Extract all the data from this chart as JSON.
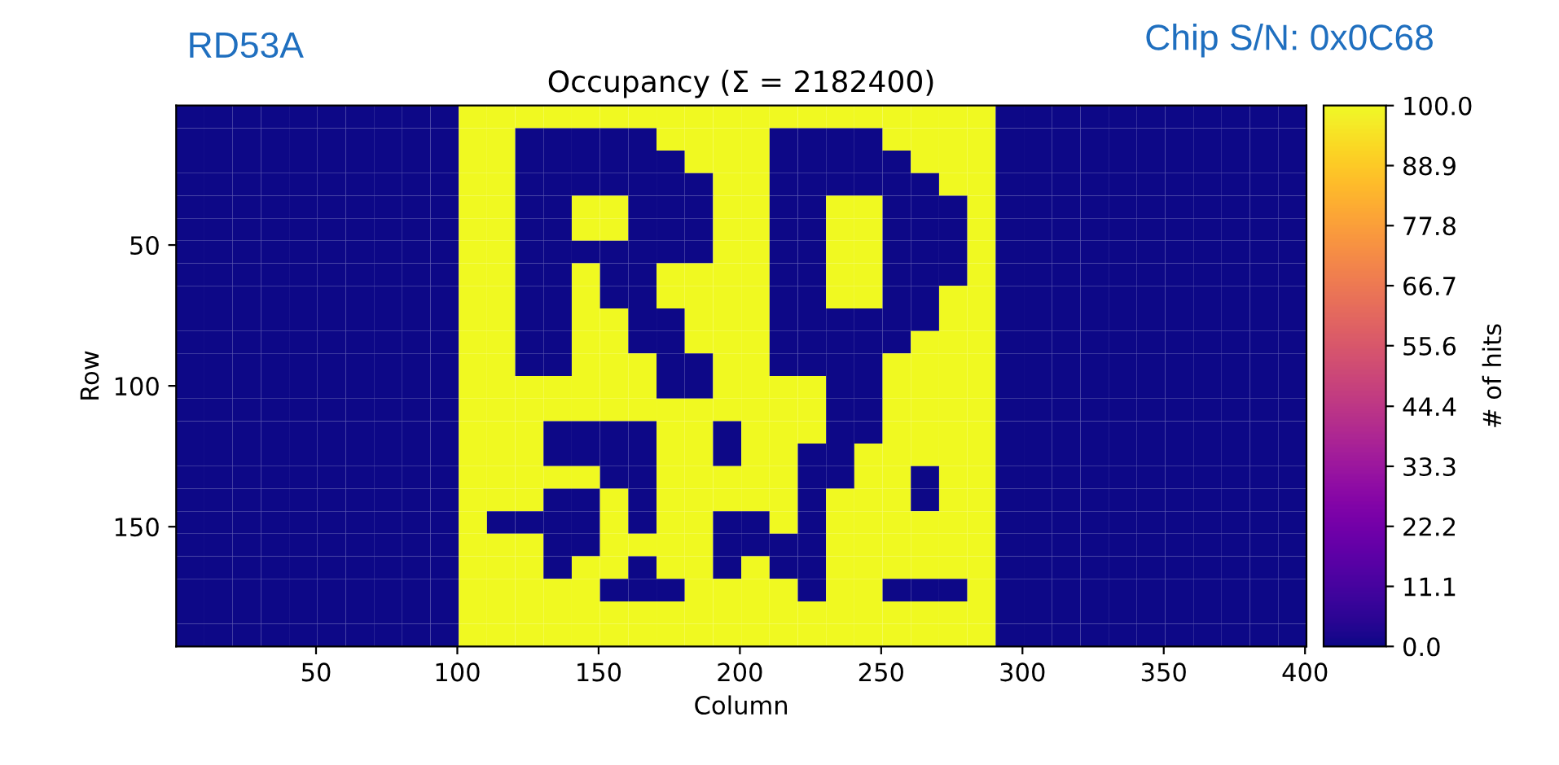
{
  "chart_data": {
    "type": "heatmap",
    "title": "Occupancy (Σ = 2182400)",
    "xlabel": "Column",
    "ylabel": "Row",
    "clabel": "# of hits",
    "annotations": [
      "RD53A",
      "Chip S/N: 0x0C68"
    ],
    "x": [
      5.5,
      15.5,
      25.5,
      35.5,
      45.5,
      55.5,
      65.5,
      75.5,
      85.5,
      95.5,
      105.5,
      115.5,
      125.5,
      135.5,
      145.5,
      155.5,
      165.5,
      175.5,
      185.5,
      195.5,
      205.5,
      215.5,
      225.5,
      235.5,
      245.5,
      255.5,
      265.5,
      275.5,
      285.5,
      295.5,
      305.5,
      315.5,
      325.5,
      335.5,
      345.5,
      355.5,
      365.5,
      375.5,
      385.5,
      395.5
    ],
    "y": [
      4.5,
      12.5,
      20.5,
      28.5,
      36.5,
      44.5,
      52.5,
      60.5,
      68.5,
      76.5,
      84.5,
      92.5,
      100.5,
      108.5,
      116.5,
      124.5,
      132.5,
      140.5,
      148.5,
      156.5,
      164.5,
      172.5,
      180.5,
      188.5
    ],
    "xlim": [
      0.5,
      400.5
    ],
    "xticks": [
      50,
      100,
      150,
      200,
      250,
      300,
      350,
      400
    ],
    "ylim": [
      192.5,
      0.5
    ],
    "yticks": [
      50,
      100,
      150
    ],
    "clim": [
      0,
      100
    ],
    "cticks": [
      {
        "value": 0,
        "label": "0.0"
      },
      {
        "value": 11.1,
        "label": "11.1"
      },
      {
        "value": 22.2,
        "label": "22.2"
      },
      {
        "value": 33.3,
        "label": "33.3"
      },
      {
        "value": 44.4,
        "label": "44.4"
      },
      {
        "value": 55.6,
        "label": "55.6"
      },
      {
        "value": 66.7,
        "label": "66.7"
      },
      {
        "value": 77.8,
        "label": "77.8"
      },
      {
        "value": 88.9,
        "label": "88.9"
      },
      {
        "value": 100,
        "label": "100.0"
      }
    ],
    "cells": [
      [
        0,
        0,
        0,
        0,
        0,
        0,
        0,
        0,
        0,
        0,
        100,
        100,
        100,
        100,
        100,
        100,
        100,
        100,
        100,
        100,
        100,
        100,
        100,
        100,
        100,
        100,
        100,
        100,
        100,
        0,
        0,
        0,
        0,
        0,
        0,
        0,
        0,
        0,
        0,
        0
      ],
      [
        0,
        0,
        0,
        0,
        0,
        0,
        0,
        0,
        0,
        0,
        100,
        100,
        0,
        0,
        0,
        0,
        0,
        100,
        100,
        100,
        100,
        0,
        0,
        0,
        0,
        100,
        100,
        100,
        100,
        0,
        0,
        0,
        0,
        0,
        0,
        0,
        0,
        0,
        0,
        0
      ],
      [
        0,
        0,
        0,
        0,
        0,
        0,
        0,
        0,
        0,
        0,
        100,
        100,
        0,
        0,
        0,
        0,
        0,
        0,
        100,
        100,
        100,
        0,
        0,
        0,
        0,
        0,
        100,
        100,
        100,
        0,
        0,
        0,
        0,
        0,
        0,
        0,
        0,
        0,
        0,
        0
      ],
      [
        0,
        0,
        0,
        0,
        0,
        0,
        0,
        0,
        0,
        0,
        100,
        100,
        0,
        0,
        0,
        0,
        0,
        0,
        0,
        100,
        100,
        0,
        0,
        0,
        0,
        0,
        0,
        100,
        100,
        0,
        0,
        0,
        0,
        0,
        0,
        0,
        0,
        0,
        0,
        0
      ],
      [
        0,
        0,
        0,
        0,
        0,
        0,
        0,
        0,
        0,
        0,
        100,
        100,
        0,
        0,
        100,
        100,
        0,
        0,
        0,
        100,
        100,
        0,
        0,
        100,
        100,
        0,
        0,
        0,
        100,
        0,
        0,
        0,
        0,
        0,
        0,
        0,
        0,
        0,
        0,
        0
      ],
      [
        0,
        0,
        0,
        0,
        0,
        0,
        0,
        0,
        0,
        0,
        100,
        100,
        0,
        0,
        100,
        100,
        0,
        0,
        0,
        100,
        100,
        0,
        0,
        100,
        100,
        0,
        0,
        0,
        100,
        0,
        0,
        0,
        0,
        0,
        0,
        0,
        0,
        0,
        0,
        0
      ],
      [
        0,
        0,
        0,
        0,
        0,
        0,
        0,
        0,
        0,
        0,
        100,
        100,
        0,
        0,
        0,
        0,
        0,
        0,
        0,
        100,
        100,
        0,
        0,
        100,
        100,
        0,
        0,
        0,
        100,
        0,
        0,
        0,
        0,
        0,
        0,
        0,
        0,
        0,
        0,
        0
      ],
      [
        0,
        0,
        0,
        0,
        0,
        0,
        0,
        0,
        0,
        0,
        100,
        100,
        0,
        0,
        100,
        0,
        0,
        100,
        100,
        100,
        100,
        0,
        0,
        100,
        100,
        0,
        0,
        0,
        100,
        0,
        0,
        0,
        0,
        0,
        0,
        0,
        0,
        0,
        0,
        0
      ],
      [
        0,
        0,
        0,
        0,
        0,
        0,
        0,
        0,
        0,
        0,
        100,
        100,
        0,
        0,
        100,
        0,
        0,
        100,
        100,
        100,
        100,
        0,
        0,
        100,
        100,
        0,
        0,
        100,
        100,
        0,
        0,
        0,
        0,
        0,
        0,
        0,
        0,
        0,
        0,
        0
      ],
      [
        0,
        0,
        0,
        0,
        0,
        0,
        0,
        0,
        0,
        0,
        100,
        100,
        0,
        0,
        100,
        100,
        0,
        0,
        100,
        100,
        100,
        0,
        0,
        0,
        0,
        0,
        0,
        100,
        100,
        0,
        0,
        0,
        0,
        0,
        0,
        0,
        0,
        0,
        0,
        0
      ],
      [
        0,
        0,
        0,
        0,
        0,
        0,
        0,
        0,
        0,
        0,
        100,
        100,
        0,
        0,
        100,
        100,
        0,
        0,
        100,
        100,
        100,
        0,
        0,
        0,
        0,
        0,
        100,
        100,
        100,
        0,
        0,
        0,
        0,
        0,
        0,
        0,
        0,
        0,
        0,
        0
      ],
      [
        0,
        0,
        0,
        0,
        0,
        0,
        0,
        0,
        0,
        0,
        100,
        100,
        0,
        0,
        100,
        100,
        100,
        0,
        0,
        100,
        100,
        0,
        0,
        0,
        0,
        100,
        100,
        100,
        100,
        0,
        0,
        0,
        0,
        0,
        0,
        0,
        0,
        0,
        0,
        0
      ],
      [
        0,
        0,
        0,
        0,
        0,
        0,
        0,
        0,
        0,
        0,
        100,
        100,
        100,
        100,
        100,
        100,
        100,
        0,
        0,
        100,
        100,
        100,
        100,
        0,
        0,
        100,
        100,
        100,
        100,
        0,
        0,
        0,
        0,
        0,
        0,
        0,
        0,
        0,
        0,
        0
      ],
      [
        0,
        0,
        0,
        0,
        0,
        0,
        0,
        0,
        0,
        0,
        100,
        100,
        100,
        100,
        100,
        100,
        100,
        100,
        100,
        100,
        100,
        100,
        100,
        0,
        0,
        100,
        100,
        100,
        100,
        0,
        0,
        0,
        0,
        0,
        0,
        0,
        0,
        0,
        0,
        0
      ],
      [
        0,
        0,
        0,
        0,
        0,
        0,
        0,
        0,
        0,
        0,
        100,
        100,
        100,
        0,
        0,
        0,
        0,
        100,
        100,
        0,
        100,
        100,
        100,
        0,
        0,
        100,
        100,
        100,
        100,
        0,
        0,
        0,
        0,
        0,
        0,
        0,
        0,
        0,
        0,
        0
      ],
      [
        0,
        0,
        0,
        0,
        0,
        0,
        0,
        0,
        0,
        0,
        100,
        100,
        100,
        0,
        0,
        0,
        0,
        100,
        100,
        0,
        100,
        100,
        0,
        0,
        100,
        100,
        100,
        100,
        100,
        0,
        0,
        0,
        0,
        0,
        0,
        0,
        0,
        0,
        0,
        0
      ],
      [
        0,
        0,
        0,
        0,
        0,
        0,
        0,
        0,
        0,
        0,
        100,
        100,
        100,
        100,
        100,
        0,
        0,
        100,
        100,
        100,
        100,
        100,
        0,
        0,
        100,
        100,
        0,
        100,
        100,
        0,
        0,
        0,
        0,
        0,
        0,
        0,
        0,
        0,
        0,
        0
      ],
      [
        0,
        0,
        0,
        0,
        0,
        0,
        0,
        0,
        0,
        0,
        100,
        100,
        100,
        0,
        0,
        100,
        0,
        100,
        100,
        100,
        100,
        100,
        0,
        100,
        100,
        100,
        0,
        100,
        100,
        0,
        0,
        0,
        0,
        0,
        0,
        0,
        0,
        0,
        0,
        0
      ],
      [
        0,
        0,
        0,
        0,
        0,
        0,
        0,
        0,
        0,
        0,
        100,
        0,
        0,
        0,
        0,
        100,
        0,
        100,
        100,
        0,
        0,
        100,
        0,
        100,
        100,
        100,
        100,
        100,
        100,
        0,
        0,
        0,
        0,
        0,
        0,
        0,
        0,
        0,
        0,
        0
      ],
      [
        0,
        0,
        0,
        0,
        0,
        0,
        0,
        0,
        0,
        0,
        100,
        100,
        100,
        0,
        0,
        100,
        100,
        100,
        100,
        0,
        0,
        0,
        0,
        100,
        100,
        100,
        100,
        100,
        100,
        0,
        0,
        0,
        0,
        0,
        0,
        0,
        0,
        0,
        0,
        0
      ],
      [
        0,
        0,
        0,
        0,
        0,
        0,
        0,
        0,
        0,
        0,
        100,
        100,
        100,
        0,
        100,
        100,
        0,
        100,
        100,
        0,
        100,
        0,
        0,
        100,
        100,
        100,
        100,
        100,
        100,
        0,
        0,
        0,
        0,
        0,
        0,
        0,
        0,
        0,
        0,
        0
      ],
      [
        0,
        0,
        0,
        0,
        0,
        0,
        0,
        0,
        0,
        0,
        100,
        100,
        100,
        100,
        100,
        0,
        0,
        0,
        100,
        100,
        100,
        100,
        0,
        100,
        100,
        0,
        0,
        0,
        100,
        0,
        0,
        0,
        0,
        0,
        0,
        0,
        0,
        0,
        0,
        0
      ],
      [
        0,
        0,
        0,
        0,
        0,
        0,
        0,
        0,
        0,
        0,
        100,
        100,
        100,
        100,
        100,
        100,
        100,
        100,
        100,
        100,
        100,
        100,
        100,
        100,
        100,
        100,
        100,
        100,
        100,
        0,
        0,
        0,
        0,
        0,
        0,
        0,
        0,
        0,
        0,
        0
      ],
      [
        0,
        0,
        0,
        0,
        0,
        0,
        0,
        0,
        0,
        0,
        100,
        100,
        100,
        100,
        100,
        100,
        100,
        100,
        100,
        100,
        100,
        100,
        100,
        100,
        100,
        100,
        100,
        100,
        100,
        0,
        0,
        0,
        0,
        0,
        0,
        0,
        0,
        0,
        0,
        0
      ]
    ]
  }
}
